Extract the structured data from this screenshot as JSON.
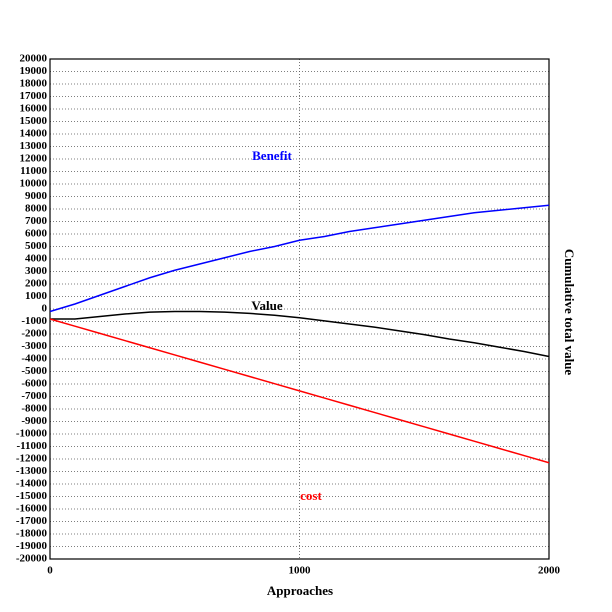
{
  "chart_data": {
    "type": "line",
    "x_label": "Approaches",
    "y_label": "Cumulative total value",
    "x": [
      0,
      100,
      200,
      300,
      400,
      500,
      600,
      700,
      800,
      900,
      1000,
      1100,
      1200,
      1300,
      1400,
      1500,
      1600,
      1700,
      1800,
      1900,
      2000
    ],
    "series": [
      {
        "name": "Benefit",
        "color": "#0000ff",
        "values": [
          -200,
          400,
          1100,
          1800,
          2500,
          3100,
          3600,
          4100,
          4600,
          5000,
          5500,
          5800,
          6200,
          6500,
          6800,
          7100,
          7400,
          7700,
          7900,
          8100,
          8300
        ]
      },
      {
        "name": "Value",
        "color": "#000000",
        "values": [
          -800,
          -800,
          -600,
          -400,
          -250,
          -200,
          -200,
          -250,
          -350,
          -500,
          -700,
          -950,
          -1200,
          -1450,
          -1750,
          -2050,
          -2400,
          -2700,
          -3050,
          -3400,
          -3800
        ]
      },
      {
        "name": "cost",
        "color": "#ff0000",
        "values": [
          -800,
          -1375,
          -1950,
          -2525,
          -3100,
          -3675,
          -4250,
          -4825,
          -5400,
          -5975,
          -6550,
          -7125,
          -7700,
          -8275,
          -8850,
          -9425,
          -10000,
          -10575,
          -11150,
          -11725,
          -12300
        ]
      }
    ],
    "xlim": [
      0,
      2000
    ],
    "xticks": [
      0,
      1000,
      2000
    ],
    "ylim": [
      -20000,
      20000
    ],
    "yticks": [
      -20000,
      -19000,
      -18000,
      -17000,
      -16000,
      -15000,
      -14000,
      -13000,
      -12000,
      -11000,
      -10000,
      -9000,
      -8000,
      -7000,
      -6000,
      -5000,
      -4000,
      -3000,
      -2000,
      -1000,
      0,
      1000,
      2000,
      3000,
      4000,
      5000,
      6000,
      7000,
      8000,
      9000,
      10000,
      11000,
      12000,
      13000,
      14000,
      15000,
      16000,
      17000,
      18000,
      19000,
      20000
    ],
    "grid": true
  }
}
